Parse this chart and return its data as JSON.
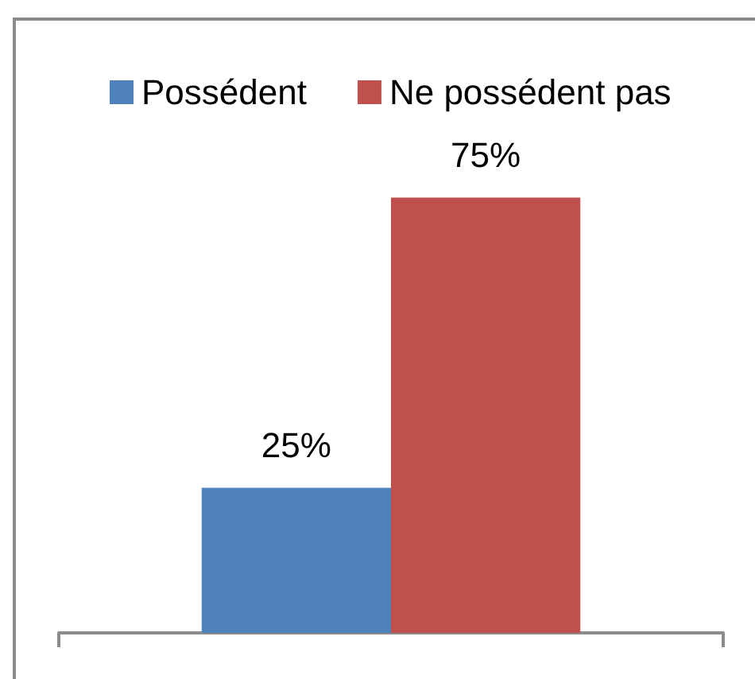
{
  "chart_data": {
    "type": "bar",
    "categories": [
      null
    ],
    "series": [
      {
        "name": "Possédent",
        "color": "#4f81bd",
        "values": [
          25
        ],
        "value_labels": [
          "25%"
        ]
      },
      {
        "name": "Ne possédent pas",
        "color": "#c0504d",
        "values": [
          75
        ],
        "value_labels": [
          "75%"
        ]
      }
    ],
    "legend": "top",
    "tick_labels": false
  }
}
